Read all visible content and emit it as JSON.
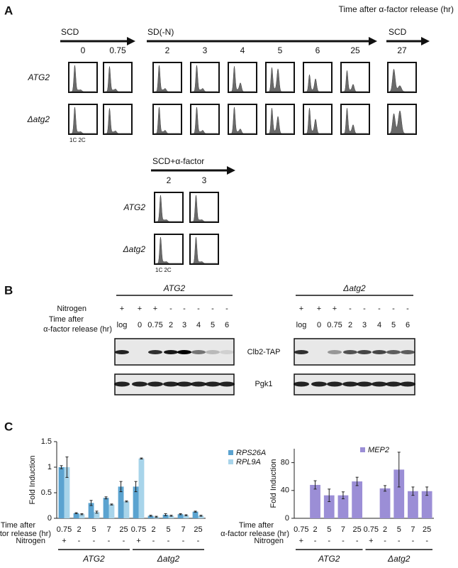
{
  "panel_a": {
    "label": "A",
    "time_label": "Time after α-factor release (hr)",
    "phases": [
      "SCD",
      "SD(-N)",
      "SCD"
    ],
    "times": [
      "0",
      "0.75",
      "2",
      "3",
      "4",
      "5",
      "6",
      "25",
      "27"
    ],
    "rows": [
      "ATG2",
      "Δatg2"
    ],
    "ploidy_label": "1C 2C",
    "arrest": {
      "phase": "SCD+α-factor",
      "times": [
        "2",
        "3"
      ],
      "rows": [
        "ATG2",
        "Δatg2"
      ],
      "ploidy_label": "1C 2C"
    }
  },
  "panel_b": {
    "label": "B",
    "groups": [
      "ATG2",
      "Δatg2"
    ],
    "nitrogen_label": "Nitrogen",
    "nitrogen": [
      "+",
      "+",
      "+",
      "-",
      "-",
      "-",
      "-",
      "-"
    ],
    "time_label": [
      "Time after",
      "α-factor release (hr)"
    ],
    "lanes": [
      "log",
      "0",
      "0.75",
      "2",
      "3",
      "4",
      "5",
      "6"
    ],
    "blots": [
      "Clb2-TAP",
      "Pgk1"
    ]
  },
  "panel_c": {
    "label": "C"
  },
  "chart_data": [
    {
      "type": "bar",
      "y_label": "Fold Induction",
      "x_label": [
        "Time after",
        "α-factor release (hr)"
      ],
      "categories": [
        "0.75",
        "2",
        "5",
        "7",
        "25",
        "0.75",
        "2",
        "5",
        "7",
        "25"
      ],
      "row_label": "Nitrogen",
      "nitrogen": [
        "+",
        "-",
        "-",
        "-",
        "-",
        "+",
        "-",
        "-",
        "-",
        "-"
      ],
      "groups": [
        "ATG2",
        "Δatg2"
      ],
      "series": [
        {
          "name": "RPS26A",
          "color": "#5ba3d0",
          "values": [
            1.0,
            0.1,
            0.3,
            0.4,
            0.62,
            0.62,
            0.05,
            0.07,
            0.08,
            0.13
          ],
          "errors": [
            0.03,
            0.01,
            0.05,
            0.02,
            0.1,
            0.1,
            0.01,
            0.02,
            0.01,
            0.01
          ]
        },
        {
          "name": "RPL9A",
          "color": "#a8d4ea",
          "values": [
            1.0,
            0.08,
            0.12,
            0.27,
            0.33,
            1.17,
            0.03,
            0.05,
            0.06,
            0.05
          ],
          "errors": [
            0.2,
            0.01,
            0.02,
            0.01,
            0.01,
            0.01,
            0.01,
            0.01,
            0.01,
            0.01
          ]
        }
      ],
      "ylim": [
        0,
        1.5
      ],
      "yticks": [
        0,
        0.5,
        1,
        1.5
      ],
      "legend": "upper right"
    },
    {
      "type": "bar",
      "y_label": "Fold Induction",
      "x_label": [
        "Time after",
        "α-factor release (hr)"
      ],
      "categories": [
        "0.75",
        "2",
        "5",
        "7",
        "25",
        "0.75",
        "2",
        "5",
        "7",
        "25"
      ],
      "row_label": "Nitrogen",
      "nitrogen": [
        "+",
        "-",
        "-",
        "-",
        "-",
        "+",
        "-",
        "-",
        "-",
        "-"
      ],
      "groups": [
        "ATG2",
        "Δatg2"
      ],
      "series": [
        {
          "name": "MEP2",
          "color": "#9b8ed6",
          "values": [
            0,
            48,
            33,
            33,
            53,
            0,
            43,
            70,
            39,
            39
          ],
          "errors": [
            0,
            6,
            9,
            5,
            6,
            0,
            4,
            25,
            6,
            6
          ]
        }
      ],
      "ylim": [
        0,
        100
      ],
      "yticks": [
        0,
        40,
        80
      ],
      "legend": "upper right"
    }
  ]
}
